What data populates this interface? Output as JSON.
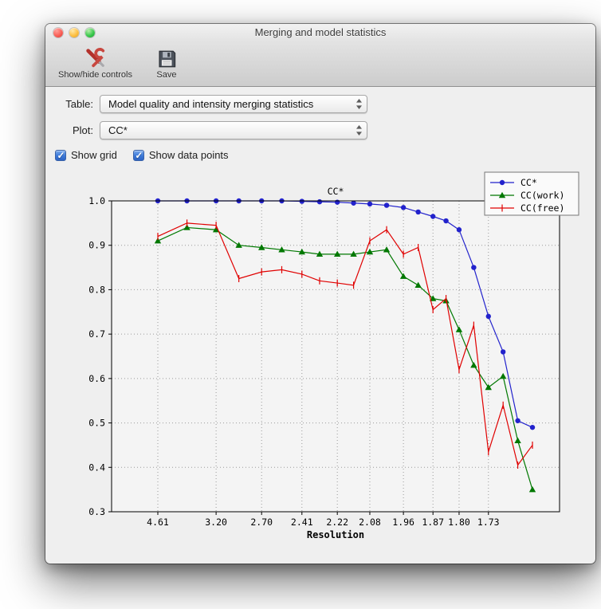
{
  "window": {
    "title": "Merging and model statistics"
  },
  "toolbar": {
    "buttons": [
      {
        "label": "Show/hide controls",
        "icon": "tools-icon"
      },
      {
        "label": "Save",
        "icon": "floppy-disk-icon"
      }
    ]
  },
  "controls": {
    "table_label": "Table:",
    "table_value": "Model quality and intensity merging statistics",
    "plot_label": "Plot:",
    "plot_value": "CC*",
    "checkboxes": [
      {
        "label": "Show grid",
        "checked": true
      },
      {
        "label": "Show data points",
        "checked": true
      }
    ]
  },
  "chart_data": {
    "type": "line",
    "title": "CC*",
    "xlabel": "Resolution",
    "ylabel": "",
    "ylim": [
      0.3,
      1.0
    ],
    "yticks": [
      0.3,
      0.4,
      0.5,
      0.6,
      0.7,
      0.8,
      0.9,
      1.0
    ],
    "xtick_labels": [
      "4.61",
      "3.20",
      "2.70",
      "2.41",
      "2.22",
      "2.08",
      "1.96",
      "1.87",
      "1.80",
      "1.73"
    ],
    "xticks_every": 2,
    "n_points": 22,
    "grid": true,
    "show_data_points": true,
    "legend_position": "upper right",
    "colors": {
      "ccstar": "#2222cc",
      "ccwork": "#007800",
      "ccfree": "#e00000"
    },
    "series": [
      {
        "name": "CC*",
        "color": "#2222cc",
        "marker": "circle",
        "values": [
          1.0,
          1.0,
          1.0,
          1.0,
          1.0,
          1.0,
          0.999,
          0.998,
          0.997,
          0.995,
          0.993,
          0.99,
          0.985,
          0.975,
          0.965,
          0.955,
          0.935,
          0.85,
          0.74,
          0.66,
          0.505,
          0.49
        ]
      },
      {
        "name": "CC(work)",
        "color": "#007800",
        "marker": "triangle",
        "values": [
          0.91,
          0.94,
          0.935,
          0.9,
          0.895,
          0.89,
          0.885,
          0.88,
          0.88,
          0.88,
          0.885,
          0.89,
          0.83,
          0.81,
          0.78,
          0.775,
          0.71,
          0.63,
          0.58,
          0.605,
          0.46,
          0.35
        ]
      },
      {
        "name": "CC(free)",
        "color": "#e00000",
        "marker": "vline",
        "values": [
          0.92,
          0.95,
          0.945,
          0.825,
          0.84,
          0.845,
          0.835,
          0.82,
          0.815,
          0.81,
          0.91,
          0.935,
          0.88,
          0.895,
          0.755,
          0.78,
          0.62,
          0.72,
          0.435,
          0.54,
          0.405,
          0.45
        ]
      }
    ]
  }
}
